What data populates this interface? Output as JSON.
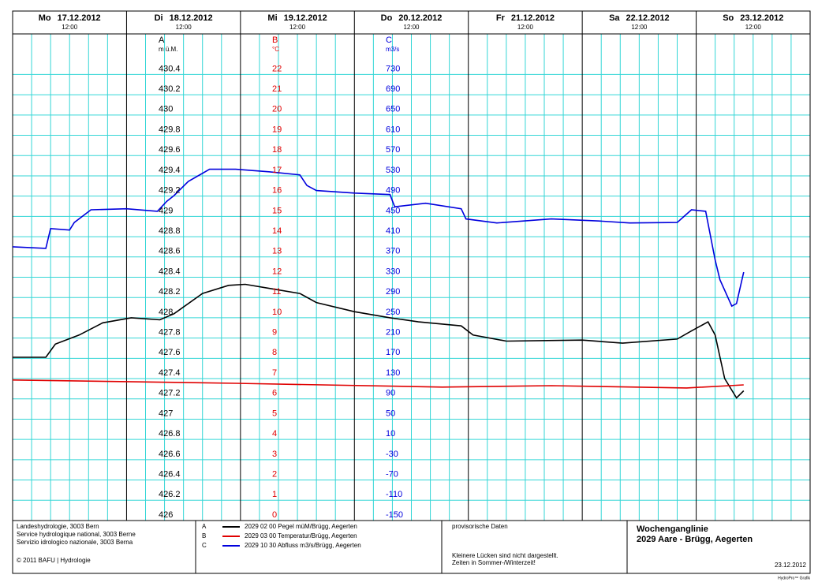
{
  "chart_data": {
    "type": "line",
    "days": [
      {
        "weekday": "Mo",
        "date": "17.12.2012",
        "time": "12:00"
      },
      {
        "weekday": "Di",
        "date": "18.12.2012",
        "time": "12:00"
      },
      {
        "weekday": "Mi",
        "date": "19.12.2012",
        "time": "12:00"
      },
      {
        "weekday": "Do",
        "date": "20.12.2012",
        "time": "12:00"
      },
      {
        "weekday": "Fr",
        "date": "21.12.2012",
        "time": "12:00"
      },
      {
        "weekday": "Sa",
        "date": "22.12.2012",
        "time": "12:00"
      },
      {
        "weekday": "So",
        "date": "23.12.2012",
        "time": "12:00"
      }
    ],
    "xlim": [
      "2012-12-17T00:00",
      "2012-12-24T00:00"
    ],
    "grid": true,
    "axes": [
      {
        "letter": "A",
        "unit": "m ü.M.",
        "color": "#000000",
        "ylim": [
          426,
          430.8
        ],
        "yticks": [
          426,
          426.2,
          426.4,
          426.6,
          426.8,
          427,
          427.2,
          427.4,
          427.6,
          427.8,
          428,
          428.2,
          428.4,
          428.6,
          428.8,
          429,
          429.2,
          429.4,
          429.6,
          429.8,
          430,
          430.2,
          430.4
        ]
      },
      {
        "letter": "B",
        "unit": "°C",
        "color": "#e00000",
        "ylim": [
          0,
          24
        ],
        "yticks": [
          0,
          1,
          2,
          3,
          4,
          5,
          6,
          7,
          8,
          9,
          10,
          11,
          12,
          13,
          14,
          15,
          16,
          17,
          18,
          19,
          20,
          21,
          22
        ]
      },
      {
        "letter": "C",
        "unit": "m3/s",
        "color": "#0000dd",
        "ylim": [
          -150,
          810
        ],
        "yticks": [
          -150,
          -110,
          -70,
          -30,
          10,
          50,
          90,
          130,
          170,
          210,
          250,
          290,
          330,
          370,
          410,
          450,
          490,
          530,
          570,
          610,
          650,
          690,
          730
        ]
      }
    ],
    "series": [
      {
        "letter": "A",
        "name": "2029 02 00 Pegel müM/Brügg, Aegerten",
        "color": "#000000",
        "x": [
          "2012-12-17T00:00",
          "2012-12-17T07:00",
          "2012-12-17T09:00",
          "2012-12-17T14:00",
          "2012-12-17T19:00",
          "2012-12-18T01:00",
          "2012-12-18T07:00",
          "2012-12-18T10:00",
          "2012-12-18T16:00",
          "2012-12-18T21:30",
          "2012-12-19T01:00",
          "2012-12-19T06:00",
          "2012-12-19T12:30",
          "2012-12-19T16:00",
          "2012-12-20T00:00",
          "2012-12-20T07:30",
          "2012-12-20T13:30",
          "2012-12-20T22:30",
          "2012-12-21T01:00",
          "2012-12-21T08:00",
          "2012-12-22T00:00",
          "2012-12-22T08:30",
          "2012-12-22T20:00",
          "2012-12-22T23:00",
          "2012-12-23T02:30",
          "2012-12-23T04:00",
          "2012-12-23T06:00",
          "2012-12-23T08:30",
          "2012-12-23T10:00"
        ],
        "values": [
          427.61,
          427.61,
          427.74,
          427.83,
          427.95,
          428.0,
          427.98,
          428.04,
          428.24,
          428.32,
          428.33,
          428.29,
          428.24,
          428.15,
          428.06,
          428.0,
          427.96,
          427.92,
          427.83,
          427.77,
          427.78,
          427.75,
          427.79,
          427.87,
          427.96,
          427.83,
          427.4,
          427.21,
          427.28
        ]
      },
      {
        "letter": "B",
        "name": "2029 03 00 Temperatur/Brügg, Aegerten",
        "color": "#e00000",
        "x": [
          "2012-12-17T00:00",
          "2012-12-18T23:00",
          "2012-12-20T18:30",
          "2012-12-21T17:30",
          "2012-12-22T22:00",
          "2012-12-23T10:00"
        ],
        "values": [
          6.93,
          6.77,
          6.58,
          6.65,
          6.54,
          6.69
        ]
      },
      {
        "letter": "C",
        "name": "2029 10 30 Abfluss m3/s/Brügg, Aegerten",
        "color": "#0000dd",
        "x": [
          "2012-12-17T00:00",
          "2012-12-17T07:00",
          "2012-12-17T08:00",
          "2012-12-17T12:00",
          "2012-12-17T13:00",
          "2012-12-17T16:30",
          "2012-12-18T00:00",
          "2012-12-18T06:30",
          "2012-12-18T08:30",
          "2012-12-18T10:00",
          "2012-12-18T13:00",
          "2012-12-18T17:30",
          "2012-12-18T23:00",
          "2012-12-19T06:00",
          "2012-12-19T12:30",
          "2012-12-19T14:00",
          "2012-12-19T16:00",
          "2012-12-20T00:00",
          "2012-12-20T07:30",
          "2012-12-20T08:30",
          "2012-12-20T15:00",
          "2012-12-20T22:30",
          "2012-12-20T23:30",
          "2012-12-21T06:00",
          "2012-12-21T17:30",
          "2012-12-22T03:30",
          "2012-12-22T10:00",
          "2012-12-22T20:00",
          "2012-12-22T23:00",
          "2012-12-23T02:00",
          "2012-12-23T04:00",
          "2012-12-23T05:00",
          "2012-12-23T07:30",
          "2012-12-23T08:30",
          "2012-12-23T10:00"
        ],
        "values": [
          390,
          387,
          426,
          423,
          438,
          463,
          465,
          460,
          480,
          491,
          519,
          543,
          543,
          538,
          532,
          511,
          501,
          496,
          493,
          469,
          476,
          465,
          445,
          437,
          445,
          441,
          437,
          438,
          463,
          460,
          364,
          325,
          273,
          278,
          340
        ]
      }
    ]
  },
  "footer": {
    "office": [
      "Landeshydrologie, 3003 Bern",
      "Service hydrologique national, 3003 Berne",
      "Servizio idrologico nazionale, 3003 Berna"
    ],
    "copyright": "© 2011 BAFU | Hydrologie",
    "status": "provisorische Daten",
    "notes": [
      "Kleinere Lücken sind nicht dargestellt.",
      "Zeiten in Sommer-/Winterzeit!"
    ],
    "title": "Wochenganglinie",
    "station": "2029 Aare - Brügg, Aegerten",
    "date": "23.12.2012",
    "credit": "HydroPro™ Grafik"
  }
}
